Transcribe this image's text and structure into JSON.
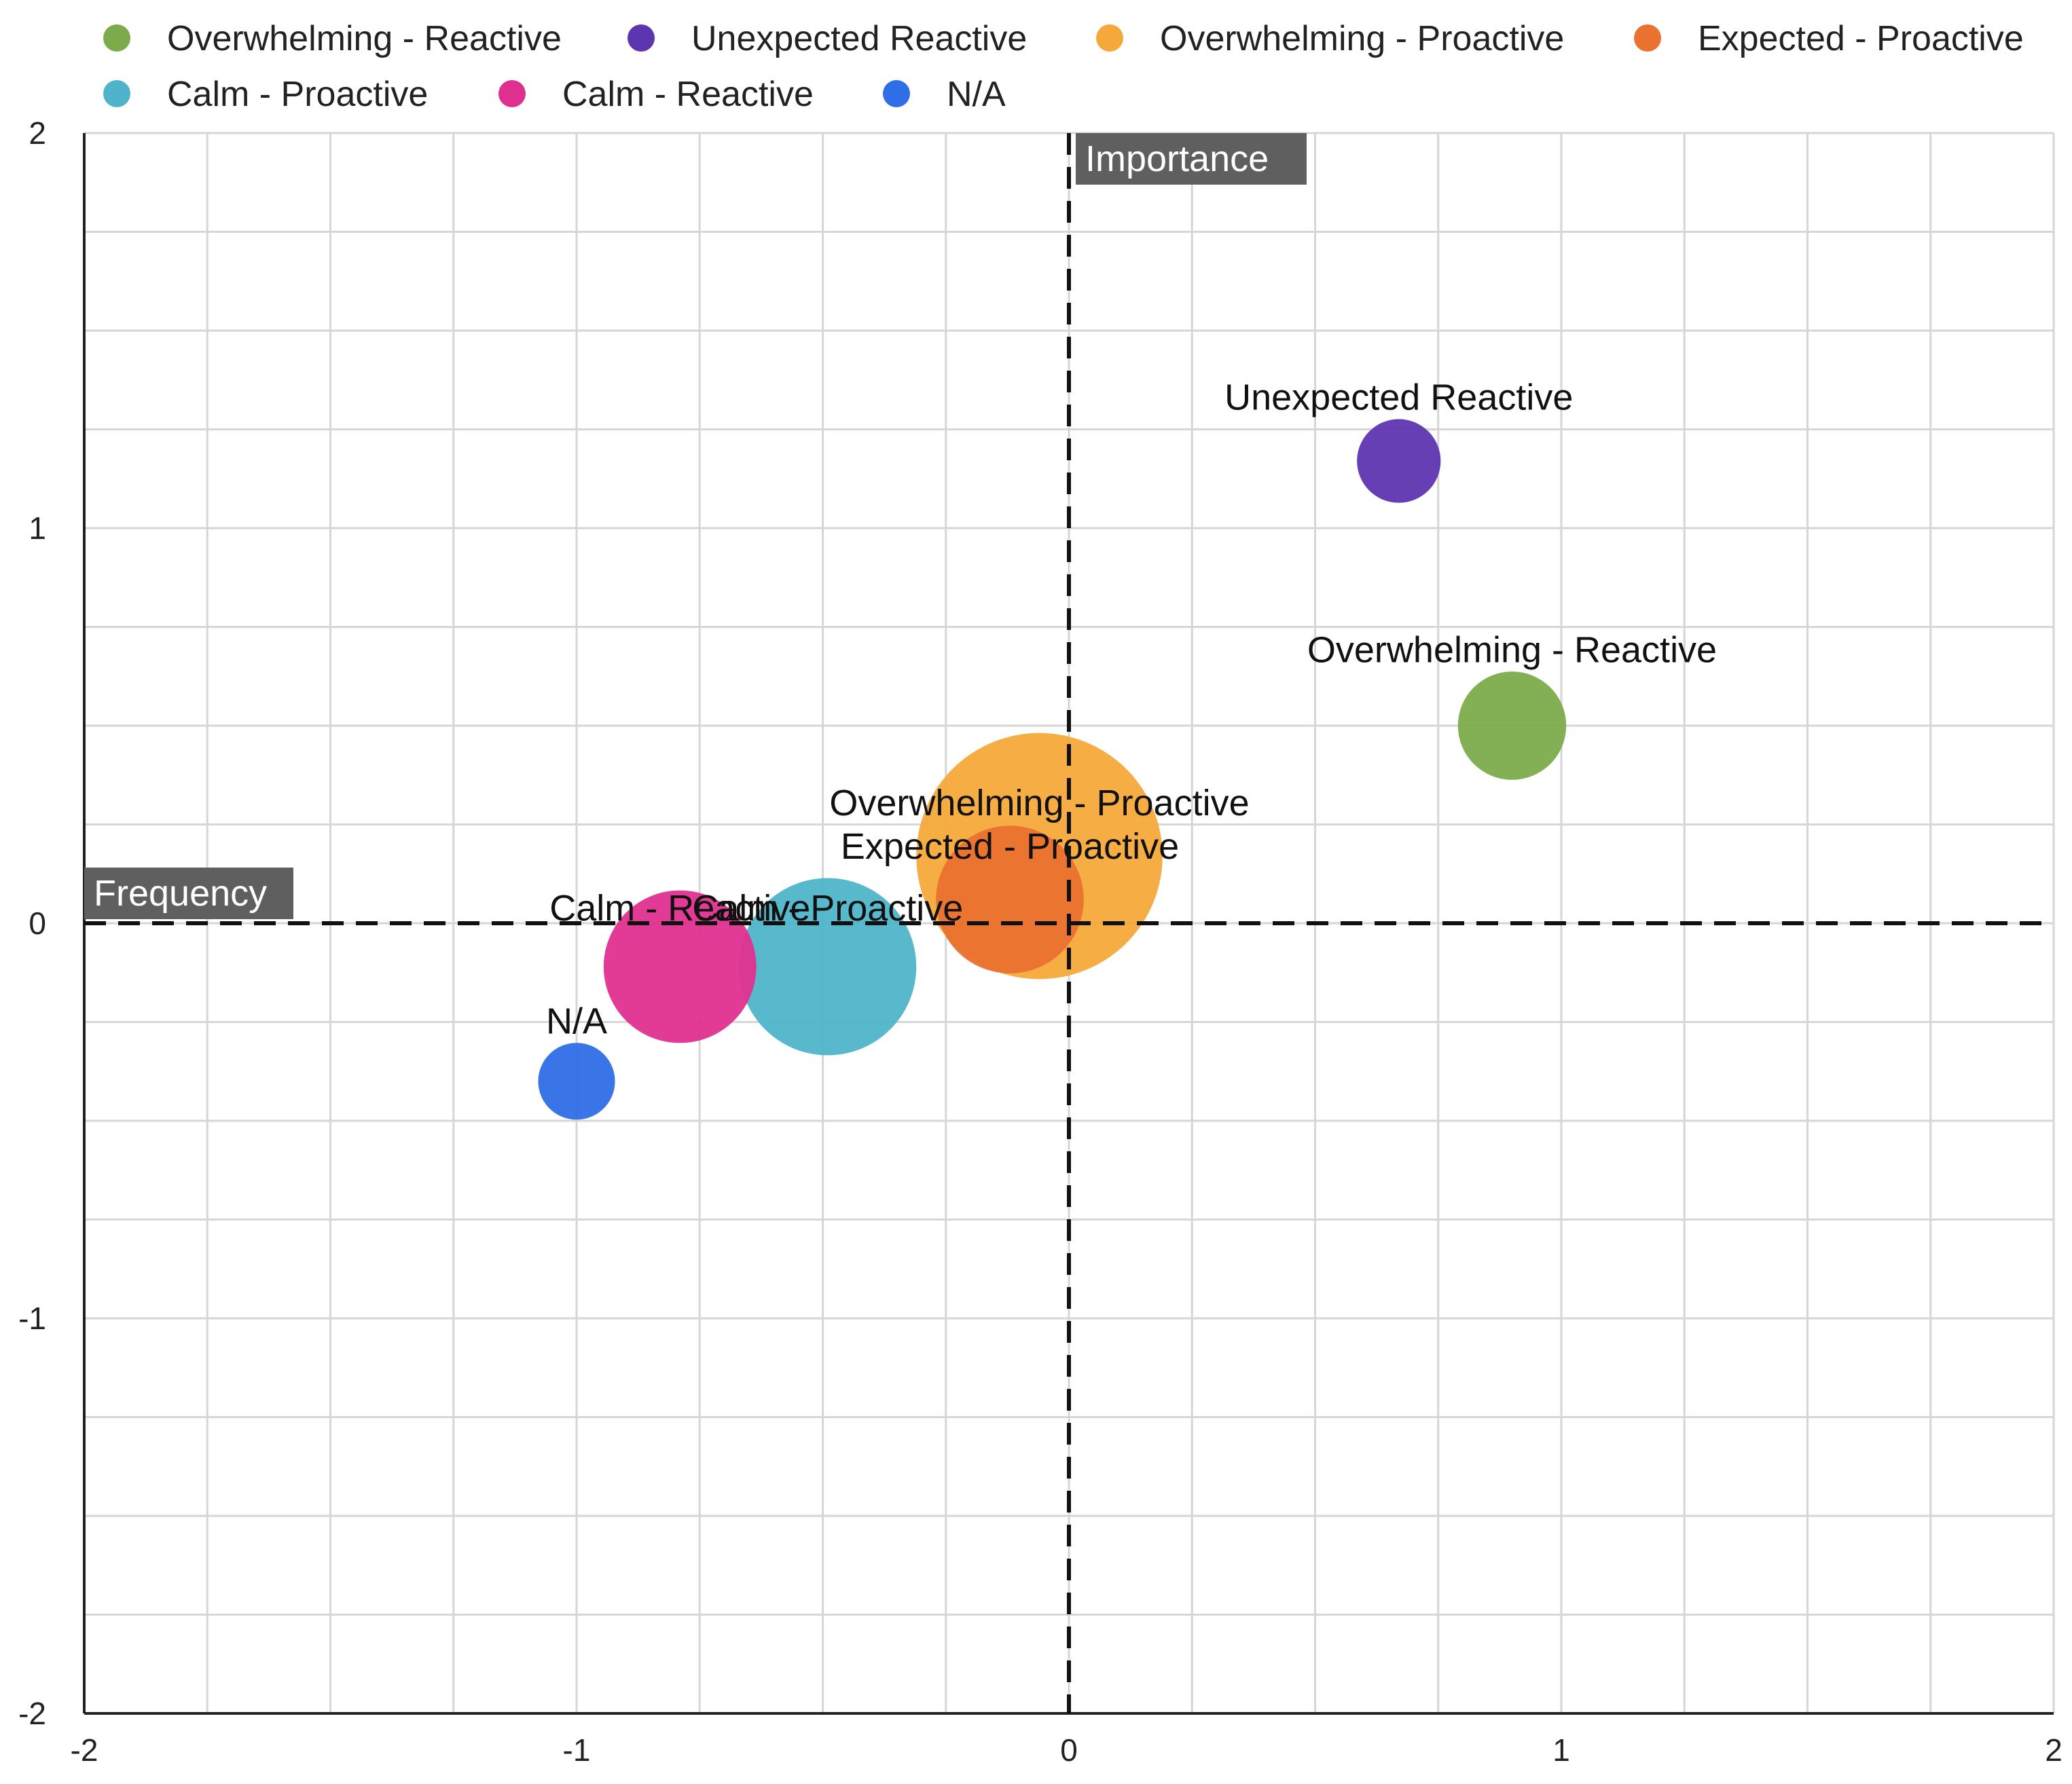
{
  "chart_data": {
    "type": "scatter",
    "subtype": "bubble",
    "title": "",
    "xlabel": "",
    "ylabel": "",
    "xlim": [
      -2,
      2
    ],
    "ylim": [
      -2,
      2
    ],
    "x_ticks": [
      "-2",
      "-1",
      "0",
      "1",
      "2"
    ],
    "y_ticks": [
      "2",
      "1",
      "0",
      "-1",
      "-2"
    ],
    "grid": true,
    "legend_position": "top",
    "axis_annotations": {
      "x_axis_label": "Frequency",
      "y_axis_label": "Importance"
    },
    "series": [
      {
        "name": "Overwhelming - Reactive",
        "label": "Overwhelming - Reactive",
        "color": "#7cab4c",
        "x": 0.9,
        "y": 0.5,
        "size": 0.11
      },
      {
        "name": "Unexpected Reactive",
        "label": "Unexpected Reactive",
        "color": "#5e35b1",
        "x": 0.67,
        "y": 1.17,
        "size": 0.085
      },
      {
        "name": "Overwhelming - Proactive",
        "label": "Overwhelming - Proactive",
        "color": "#f4a93a",
        "x": -0.06,
        "y": 0.17,
        "size": 0.25
      },
      {
        "name": "Expected - Proactive",
        "label": "Expected - Proactive",
        "color": "#ea7130",
        "x": -0.12,
        "y": 0.06,
        "size": 0.15
      },
      {
        "name": "Calm - Proactive",
        "label": "Calm - Proactive",
        "color": "#4fb4c9",
        "x": -0.49,
        "y": -0.11,
        "size": 0.18
      },
      {
        "name": "Calm - Reactive",
        "label": "Calm - Reactive",
        "color": "#e0308f",
        "x": -0.79,
        "y": -0.11,
        "size": 0.155
      },
      {
        "name": "N/A",
        "label": "N/A",
        "color": "#2f6ee6",
        "x": -1.0,
        "y": -0.4,
        "size": 0.078
      }
    ]
  }
}
